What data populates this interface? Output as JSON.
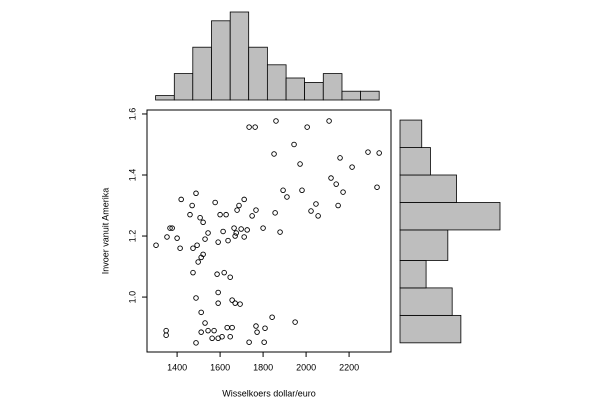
{
  "chart_data": [
    {
      "type": "scatter",
      "x_label": "Wisselkoers dollar/euro",
      "y_label": "Invoer vanuit Amerika",
      "xlim": [
        1260,
        2395
      ],
      "ylim": [
        0.82,
        1.613
      ],
      "xticks": [
        1400,
        1600,
        1800,
        2000,
        2200
      ],
      "yticks": [
        {
          "value": 1,
          "label": "1.0"
        },
        1.2,
        1.4,
        1.6
      ],
      "color": "#000000",
      "x": [
        1302,
        1353,
        1367,
        1377,
        1349,
        1349,
        1400,
        1419,
        1414,
        1460,
        1470,
        1488,
        1474,
        1474,
        1493,
        1498,
        1512,
        1521,
        1507,
        1521,
        1530,
        1544,
        1488,
        1512,
        1530,
        1488,
        1512,
        1544,
        1563,
        1572,
        1591,
        1609,
        1577,
        1591,
        1586,
        1591,
        1591,
        1600,
        1614,
        1619,
        1628,
        1637,
        1633,
        1647,
        1656,
        1647,
        1656,
        1670,
        1665,
        1675,
        1670,
        1679,
        1688,
        1698,
        1693,
        1712,
        1712,
        1726,
        1735,
        1749,
        1763,
        1767,
        1767,
        1772,
        1735,
        1809,
        1805,
        1842,
        1800,
        1851,
        1860,
        1856,
        1879,
        1893,
        1911,
        1944,
        1949,
        1972,
        1981,
        2005,
        2023,
        2046,
        2056,
        2107,
        2116,
        2140,
        2149,
        2158,
        2172,
        2214,
        2288,
        2330,
        2340
      ],
      "values": [
        1.17,
        1.197,
        1.226,
        1.226,
        0.89,
        0.875,
        1.193,
        1.32,
        1.16,
        1.27,
        1.3,
        1.34,
        1.16,
        1.08,
        1.17,
        1.115,
        1.13,
        1.14,
        1.26,
        1.245,
        1.19,
        1.21,
        0.997,
        0.95,
        0.915,
        0.85,
        0.885,
        0.89,
        0.865,
        0.89,
        0.865,
        0.87,
        1.31,
        1.18,
        1.075,
        1.015,
        0.98,
        1.27,
        1.215,
        1.08,
        1.27,
        1.185,
        0.9,
        0.87,
        0.9,
        1.065,
        0.99,
        0.98,
        1.226,
        1.21,
        1.2,
        1.285,
        1.3,
        1.223,
        0.977,
        1.32,
        1.197,
        1.22,
        1.557,
        1.266,
        1.557,
        1.285,
        0.905,
        0.885,
        0.852,
        0.898,
        0.852,
        0.934,
        1.226,
        1.469,
        1.577,
        1.276,
        1.213,
        1.35,
        1.328,
        1.5,
        0.918,
        1.436,
        1.35,
        1.557,
        1.282,
        1.305,
        1.266,
        1.577,
        1.39,
        1.37,
        1.3,
        1.456,
        1.344,
        1.426,
        1.475,
        1.36,
        1.472
      ]
    },
    {
      "type": "histogram",
      "orientation": "vertical",
      "color": "#bebebe",
      "xlim": [
        1260,
        2395
      ],
      "ylim": [
        0,
        20
      ],
      "bins": [
        1300,
        1387,
        1473,
        1560,
        1647,
        1733,
        1820,
        1907,
        1993,
        2080,
        2167,
        2253,
        2340
      ],
      "values": [
        1,
        6,
        12,
        18,
        20,
        12,
        8,
        5,
        4,
        6,
        2,
        2
      ]
    },
    {
      "type": "histogram",
      "orientation": "horizontal",
      "color": "#bebebe",
      "xlim": [
        0,
        23
      ],
      "ylim": [
        0.82,
        1.613
      ],
      "bins": [
        0.85,
        0.94,
        1.03,
        1.12,
        1.22,
        1.31,
        1.4,
        1.49,
        1.58
      ],
      "values": [
        14,
        12,
        6,
        11,
        23,
        13,
        7,
        5
      ]
    }
  ]
}
